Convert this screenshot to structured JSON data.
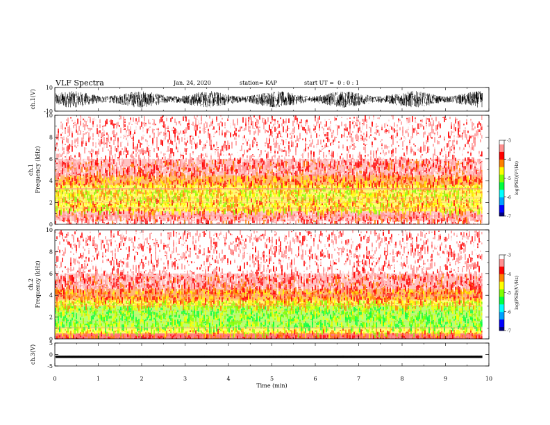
{
  "header": {
    "title": "VLF Spectra",
    "date": "Jan. 24, 2020",
    "station": "station= KAP",
    "start_ut": "start UT =  0 : 0 : 1"
  },
  "colorbar_palette": [
    "#000080",
    "#0000ff",
    "#00a0ff",
    "#00ffff",
    "#00ff40",
    "#80ff00",
    "#ffff00",
    "#ff8000",
    "#ff0000",
    "#ff9090",
    "#ffffff"
  ],
  "chart_data": [
    {
      "type": "line",
      "panel": "ch1-waveform",
      "ylabel": "ch.1(V)",
      "ylim": [
        -10,
        10
      ],
      "yticks": [
        "10",
        "-10"
      ],
      "description_values": {
        "center": 0,
        "amplitude_typical": 7
      },
      "xlim": [
        0,
        10
      ]
    },
    {
      "type": "heatmap",
      "panel": "ch1-spectrogram",
      "ylabel": "ch.1\nFrequency (kHz)",
      "ylim": [
        0,
        10
      ],
      "yticks": [
        "0",
        "2",
        "4",
        "6",
        "8",
        "10"
      ],
      "xlim": [
        0,
        10
      ],
      "data_end_min": 9.85,
      "bands": [
        {
          "from_khz": 0.0,
          "to_khz": 0.3,
          "level": -3.2
        },
        {
          "from_khz": 0.3,
          "to_khz": 1.2,
          "level": -3.6
        },
        {
          "from_khz": 1.2,
          "to_khz": 2.4,
          "level": -4.4
        },
        {
          "from_khz": 2.4,
          "to_khz": 3.6,
          "level": -4.6
        },
        {
          "from_khz": 3.6,
          "to_khz": 4.5,
          "level": -4.2
        },
        {
          "from_khz": 4.5,
          "to_khz": 6.0,
          "level": -3.6
        },
        {
          "from_khz": 6.0,
          "to_khz": 10.0,
          "level": -3.2
        }
      ],
      "colorbar": {
        "label": "log(PSD)(V²/Hz)",
        "range": [
          -7,
          -3
        ],
        "ticks": [
          "-3",
          "-4",
          "-5",
          "-6",
          "-7"
        ]
      }
    },
    {
      "type": "heatmap",
      "panel": "ch2-spectrogram",
      "ylabel": "ch.2\nFrequency (kHz)",
      "ylim": [
        0,
        10
      ],
      "yticks": [
        "0",
        "2",
        "4",
        "6",
        "8",
        "10"
      ],
      "xlim": [
        0,
        10
      ],
      "data_end_min": 9.85,
      "bands": [
        {
          "from_khz": 0.0,
          "to_khz": 0.5,
          "level": -3.8
        },
        {
          "from_khz": 0.5,
          "to_khz": 1.0,
          "level": -4.4
        },
        {
          "from_khz": 1.0,
          "to_khz": 3.0,
          "level": -5.0
        },
        {
          "from_khz": 3.0,
          "to_khz": 3.6,
          "level": -4.6
        },
        {
          "from_khz": 3.6,
          "to_khz": 4.6,
          "level": -4.2
        },
        {
          "from_khz": 4.6,
          "to_khz": 6.0,
          "level": -3.6
        },
        {
          "from_khz": 6.0,
          "to_khz": 10.0,
          "level": -3.2
        }
      ],
      "colorbar": {
        "label": "log(PSD)(V²/Hz)",
        "range": [
          -7,
          -3
        ],
        "ticks": [
          "-3",
          "-4",
          "-5",
          "-6",
          "-7"
        ]
      }
    },
    {
      "type": "line",
      "panel": "ch3-waveform",
      "ylabel": "ch.3(V)",
      "ylim": [
        -5,
        5
      ],
      "yticks": [
        "5",
        "0",
        "-5"
      ],
      "description_values": {
        "center": -1,
        "amplitude_typical": 0.5
      },
      "xlim": [
        0,
        10
      ]
    }
  ],
  "xaxis": {
    "label": "Time (min)",
    "ticks": [
      "0",
      "1",
      "2",
      "3",
      "4",
      "5",
      "6",
      "7",
      "8",
      "9",
      "10"
    ]
  }
}
